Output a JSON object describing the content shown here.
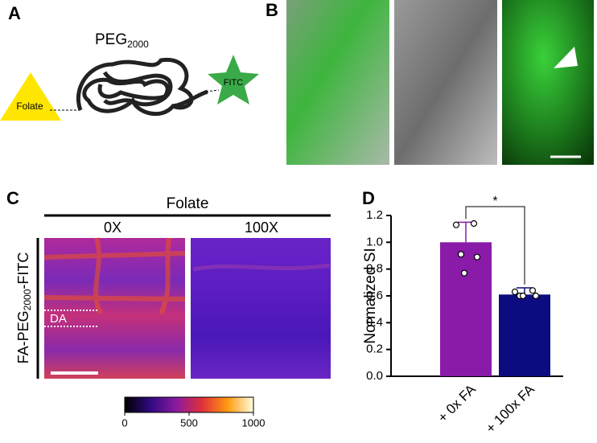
{
  "figure": {
    "panel_labels": [
      "A",
      "B",
      "C",
      "D"
    ]
  },
  "panel_a": {
    "polymer": "PEG",
    "polymer_subscript": "2000",
    "ligand": "Folate",
    "dye": "FITC"
  },
  "panel_c": {
    "header": "Folate",
    "columns": [
      "0X",
      "100X"
    ],
    "row_label": {
      "prefix": "FA-PEG",
      "subscript": "2000",
      "suffix": "-FITC"
    },
    "region_label": "DA",
    "colorbar": {
      "lim": [
        0,
        1000
      ],
      "ticks": [
        0,
        500,
        1000
      ]
    }
  },
  "chart_data": {
    "type": "bar",
    "ylabel": "Normalized SI",
    "categories": [
      "+ 0x FA",
      "+ 100x FA"
    ],
    "values": [
      1.0,
      0.61
    ],
    "errors": [
      0.15,
      0.05
    ],
    "points": [
      [
        1.13,
        1.14,
        0.91,
        0.89,
        0.77
      ],
      [
        0.63,
        0.64,
        0.6,
        0.6,
        0.6
      ]
    ],
    "colors": [
      "#8a1aa8",
      "#0c0c80"
    ],
    "ylim": [
      0,
      1.2
    ],
    "yticks": [
      {
        "value": 0,
        "label": "0.0"
      },
      {
        "value": 0.2,
        "label": "0.2"
      },
      {
        "value": 0.4,
        "label": "0.4"
      },
      {
        "value": 0.6,
        "label": "0.6"
      },
      {
        "value": 0.8,
        "label": "0.8"
      },
      {
        "value": 1.0,
        "label": "1.0"
      },
      {
        "value": 1.2,
        "label": "1.2"
      }
    ],
    "significance": "*"
  }
}
